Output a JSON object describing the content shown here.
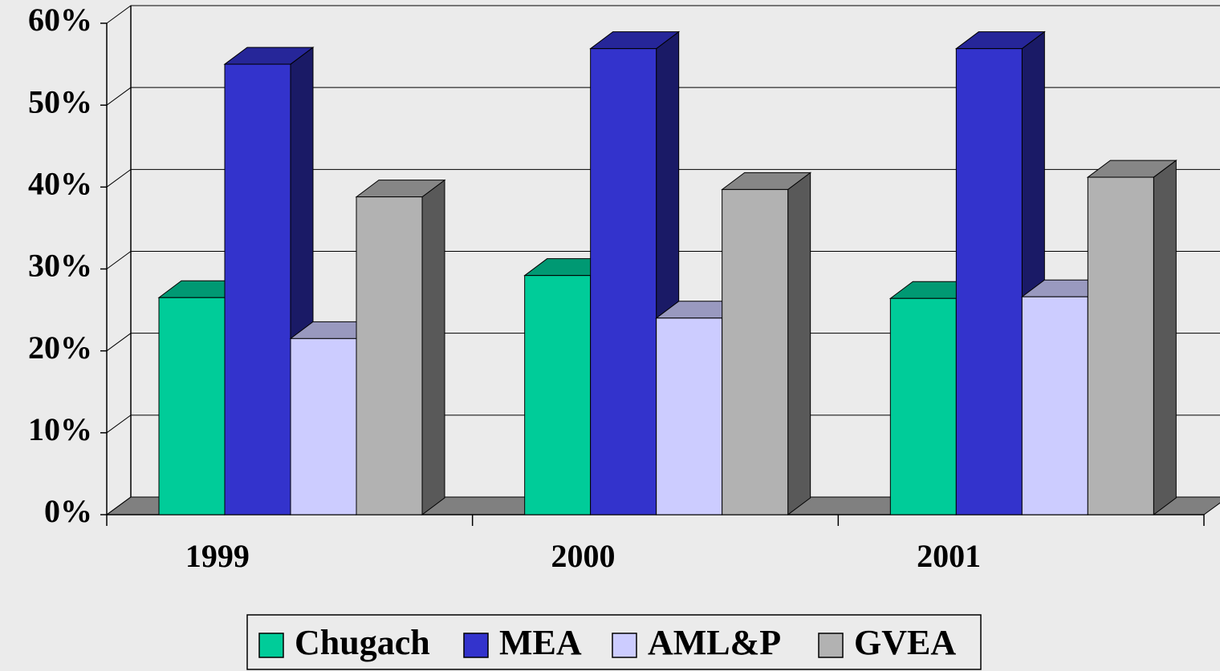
{
  "chart_data": {
    "type": "bar3d",
    "categories": [
      "1999",
      "2000",
      "2001"
    ],
    "series": [
      {
        "name": "Chugach",
        "color": "#00cc99",
        "values": [
          26.5,
          29.2,
          26.4
        ]
      },
      {
        "name": "MEA",
        "color": "#3333cc",
        "values": [
          55,
          56.9,
          56.9
        ]
      },
      {
        "name": "AML&P",
        "color": "#ccccff",
        "values": [
          21.5,
          24,
          26.6
        ]
      },
      {
        "name": "GVEA",
        "color": "#b2b2b2",
        "values": [
          38.8,
          39.7,
          41.2
        ]
      }
    ],
    "ylim": [
      0,
      60
    ],
    "yticks": [
      {
        "value": 0,
        "label": "0%"
      },
      {
        "value": 10,
        "label": "10%"
      },
      {
        "value": 20,
        "label": "20%"
      },
      {
        "value": 30,
        "label": "30%"
      },
      {
        "value": 40,
        "label": "40%"
      },
      {
        "value": 50,
        "label": "50%"
      },
      {
        "value": 60,
        "label": "60%"
      }
    ],
    "grid": true,
    "legend": "bottom"
  }
}
